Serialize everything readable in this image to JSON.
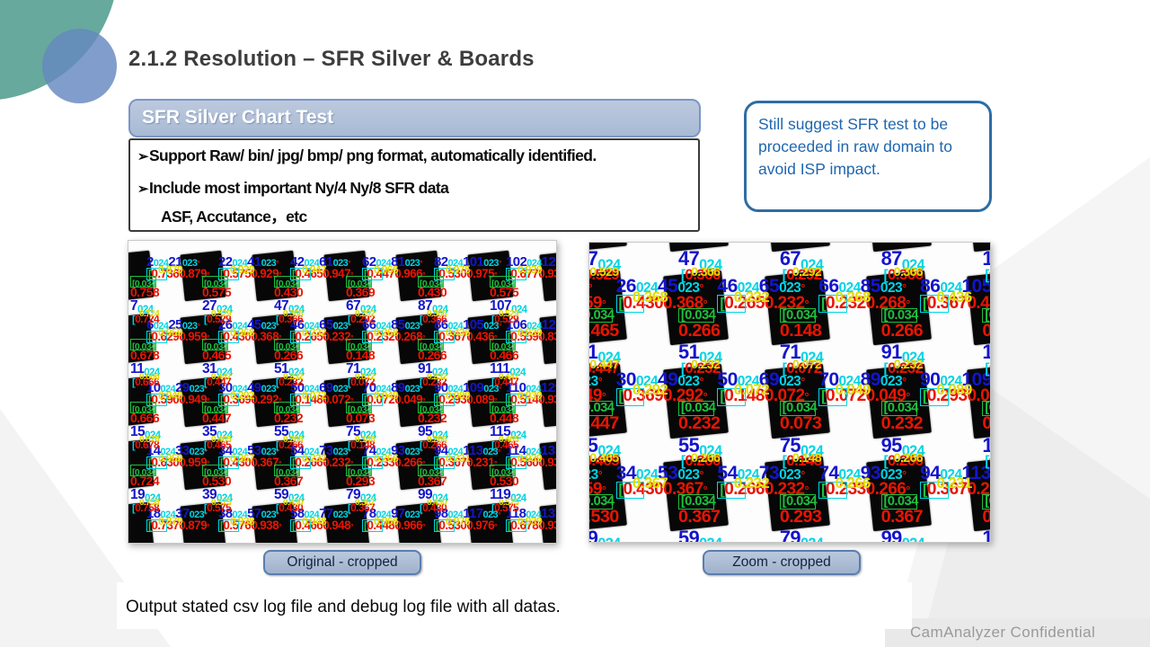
{
  "slide": {
    "title": "2.1.2  Resolution – SFR Silver & Boards",
    "footer_note": "Output stated csv log file and debug log file with all datas.",
    "confidential": "CamAnalyzer Confidential"
  },
  "chart_test_box": {
    "header": "SFR Silver Chart Test",
    "bullet_glyph": "➢",
    "bullets": [
      "Support Raw/ bin/ jpg/ bmp/ png format, automatically identified.",
      "Include most important Ny/4 Ny/8 SFR data"
    ],
    "sub_line": "ASF, Accutance，etc"
  },
  "note_box": {
    "text": "Still suggest SFR test to be proceeded in raw domain to avoid ISP impact."
  },
  "panels": [
    {
      "caption": "Original - cropped",
      "view": {
        "sx": 1,
        "sy": 1,
        "ox": 0,
        "oy": 0,
        "gdx": 0
      }
    },
    {
      "caption": "Zoom - cropped",
      "view": {
        "sx": 1.41,
        "sy": 1.48,
        "ox": 79,
        "oy": 60,
        "gdx": -18
      }
    }
  ],
  "colors": {
    "accent_blue": "#2e6da4",
    "header_fill": "#aebfd8",
    "teal_circle": "#67a99d",
    "blue_circle": "#6588c0",
    "index_blue": "#1414cc",
    "value_red": "#ea1402",
    "marker_cyan": "#00d4e4",
    "marker_green": "#1dc03e",
    "marker_yellow": "#dede00"
  },
  "sfr_chart": {
    "cyan_label": "024",
    "cyan_label2": "023",
    "green_label": "[0.034",
    "square_rows": [
      {
        "pairs": [
          [
            2,
            21
          ],
          [
            22,
            41
          ],
          [
            42,
            61
          ],
          [
            62,
            81
          ],
          [
            82,
            101
          ],
          [
            102,
            121
          ]
        ],
        "values": [
          "0.736",
          "0.575",
          "0.465",
          "0.447",
          "0.530",
          "0.677"
        ],
        "values2": [
          "0.879",
          "0.929",
          "0.947",
          "0.966",
          "0.975",
          "0.939"
        ]
      },
      {
        "pairs": [
          [
            6,
            25
          ],
          [
            26,
            45
          ],
          [
            46,
            65
          ],
          [
            66,
            85
          ],
          [
            86,
            105
          ],
          [
            106,
            125
          ]
        ],
        "values": [
          "0.629",
          "0.430",
          "0.265",
          "0.232",
          "0.367",
          "0.559"
        ],
        "values2": [
          "0.959",
          "0.368",
          "0.232",
          "0.268",
          "0.436",
          "0.839"
        ]
      },
      {
        "pairs": [
          [
            10,
            29
          ],
          [
            30,
            49
          ],
          [
            50,
            69
          ],
          [
            70,
            89
          ],
          [
            90,
            109
          ],
          [
            110,
            129
          ]
        ],
        "values": [
          "0.590",
          "0.369",
          "0.148",
          "0.072",
          "0.293",
          "0.514"
        ],
        "values2": [
          "0.949",
          "0.292",
          "0.072",
          "0.049",
          "0.089",
          "0.939"
        ]
      },
      {
        "pairs": [
          [
            14,
            33
          ],
          [
            34,
            53
          ],
          [
            54,
            73
          ],
          [
            74,
            93
          ],
          [
            94,
            113
          ],
          [
            114,
            133
          ]
        ],
        "values": [
          "0.630",
          "0.430",
          "0.266",
          "0.233",
          "0.367",
          "0.560"
        ],
        "values2": [
          "0.959",
          "0.367",
          "0.232",
          "0.266",
          "0.231",
          "0.939"
        ]
      },
      {
        "pairs": [
          [
            18,
            37
          ],
          [
            38,
            57
          ],
          [
            58,
            77
          ],
          [
            78,
            97
          ],
          [
            98,
            117
          ],
          [
            118,
            137
          ]
        ],
        "values": [
          "0.737",
          "0.576",
          "0.466",
          "0.448",
          "0.530",
          "0.678"
        ],
        "values2": [
          "0.879",
          "0.938",
          "0.948",
          "0.966",
          "0.976",
          "0.939"
        ]
      }
    ],
    "gap_rows": [
      {
        "indices": [
          7,
          27,
          47,
          67,
          87,
          107
        ],
        "values": [
          "0.758",
          "0.575",
          "0.430",
          "0.369",
          "0.430",
          "0.575"
        ],
        "sub_values": [
          "0.724",
          "0.529",
          "0.366",
          "0.292",
          "0.366",
          "0.529"
        ]
      },
      {
        "indices": [
          11,
          31,
          51,
          71,
          91,
          111
        ],
        "values": [
          "0.678",
          "0.465",
          "0.266",
          "0.148",
          "0.266",
          "0.466"
        ],
        "sub_values": [
          "0.666",
          "0.447",
          "0.232",
          "0.072",
          "0.232",
          "0.447"
        ]
      },
      {
        "indices": [
          15,
          35,
          55,
          75,
          95,
          115
        ],
        "values": [
          "0.666",
          "0.447",
          "0.232",
          "0.073",
          "0.232",
          "0.448"
        ],
        "sub_values": [
          "0.678",
          "0.465",
          "0.266",
          "0.148",
          "0.266",
          "0.465"
        ]
      },
      {
        "indices": [
          19,
          39,
          59,
          79,
          99,
          119
        ],
        "values": [
          "0.724",
          "0.530",
          "0.367",
          "0.293",
          "0.367",
          "0.530"
        ],
        "sub_values": [
          "0.758",
          "0.575",
          "0.430",
          "0.367",
          "0.430",
          "0.575"
        ]
      }
    ]
  }
}
